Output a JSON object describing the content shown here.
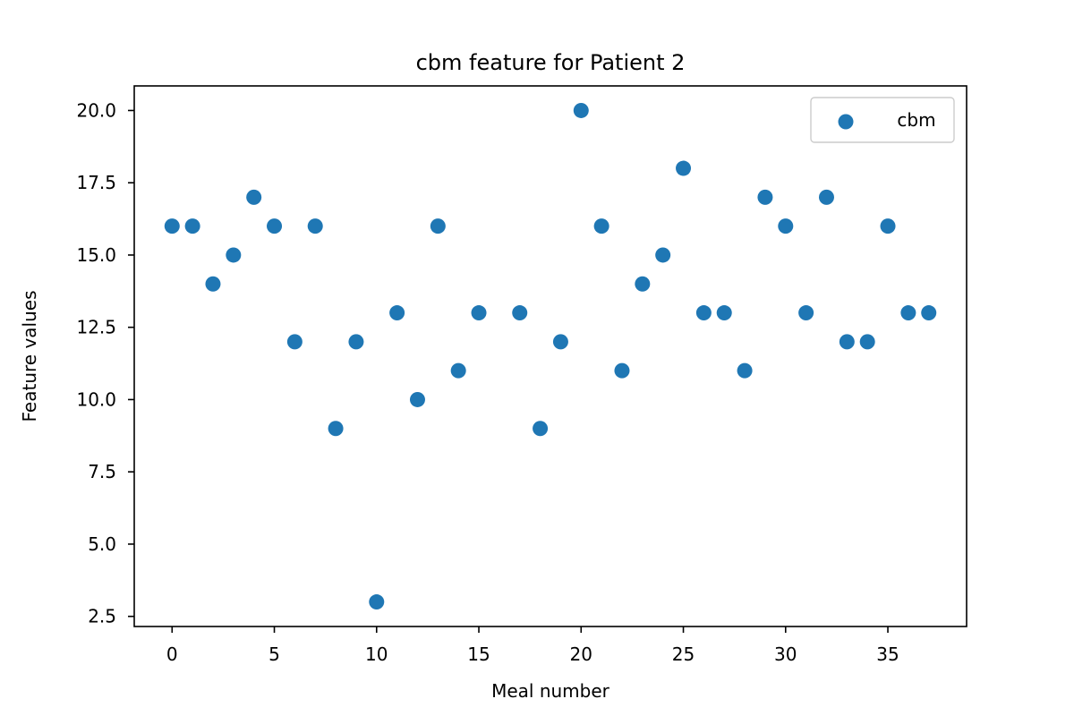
{
  "chart_data": {
    "type": "scatter",
    "title": "cbm feature for Patient 2",
    "xlabel": "Meal number",
    "ylabel": "Feature values",
    "xlim": [
      -1.85,
      38.85
    ],
    "ylim": [
      2.15,
      20.85
    ],
    "xticks": [
      0,
      5,
      10,
      15,
      20,
      25,
      30,
      35
    ],
    "yticks": [
      2.5,
      5.0,
      7.5,
      10.0,
      12.5,
      15.0,
      17.5,
      20.0
    ],
    "xtick_labels": [
      "0",
      "5",
      "10",
      "15",
      "20",
      "25",
      "30",
      "35"
    ],
    "ytick_labels": [
      "2.5",
      "5.0",
      "7.5",
      "10.0",
      "12.5",
      "15.0",
      "17.5",
      "20.0"
    ],
    "grid": false,
    "legend_position": "top-right",
    "series": [
      {
        "name": "cbm",
        "color": "#1f77b4",
        "x": [
          0,
          1,
          2,
          3,
          4,
          5,
          6,
          7,
          8,
          9,
          10,
          11,
          12,
          13,
          14,
          15,
          17,
          18,
          19,
          20,
          21,
          22,
          23,
          24,
          25,
          26,
          27,
          28,
          29,
          30,
          31,
          32,
          33,
          34,
          35,
          36,
          37
        ],
        "y": [
          16,
          16,
          14,
          15,
          17,
          16,
          12,
          16,
          9,
          12,
          3,
          13,
          10,
          16,
          11,
          13,
          13,
          9,
          12,
          20,
          16,
          11,
          14,
          15,
          18,
          13,
          13,
          11,
          17,
          16,
          13,
          17,
          12,
          12,
          16,
          13,
          13
        ]
      }
    ]
  }
}
